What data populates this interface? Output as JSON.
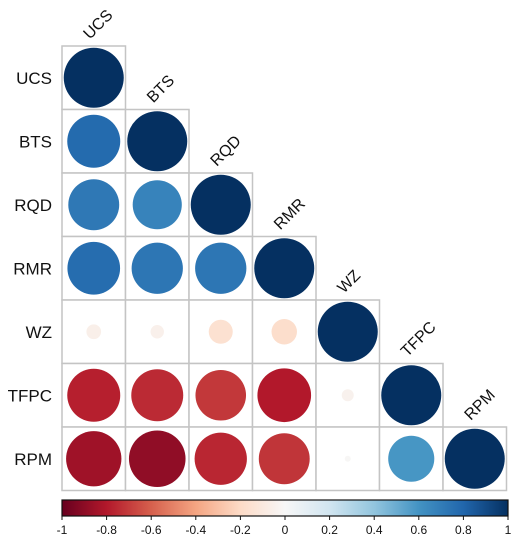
{
  "chart_data": {
    "type": "heatmap",
    "style": "lower-triangle correlation matrix with circles",
    "variables": [
      "UCS",
      "BTS",
      "RQD",
      "RMR",
      "WZ",
      "TFPC",
      "RPM"
    ],
    "matrix": [
      [
        1.0,
        null,
        null,
        null,
        null,
        null,
        null
      ],
      [
        0.78,
        1.0,
        null,
        null,
        null,
        null,
        null
      ],
      [
        0.72,
        0.67,
        1.0,
        null,
        null,
        null,
        null
      ],
      [
        0.77,
        0.73,
        0.73,
        1.0,
        null,
        null,
        null
      ],
      [
        -0.06,
        -0.05,
        -0.16,
        -0.18,
        1.0,
        null,
        null
      ],
      [
        -0.78,
        -0.75,
        -0.71,
        -0.8,
        -0.04,
        1.0,
        null
      ],
      [
        -0.85,
        -0.89,
        -0.76,
        -0.72,
        -0.01,
        0.59,
        1.0
      ]
    ],
    "colorbar": {
      "range": [
        -1,
        1
      ],
      "ticks": [
        "-1",
        "-0.8",
        "-0.6",
        "-0.4",
        "-0.2",
        "0",
        "0.2",
        "0.4",
        "0.6",
        "0.8",
        "1"
      ],
      "colors": {
        "neg_strong": "#67001f",
        "neg_mid": "#d6604d",
        "neg_light": "#fddbc7",
        "zero": "#f7f7f7",
        "pos_light": "#d1e5f0",
        "pos_mid": "#4393c3",
        "pos_strong": "#053061"
      }
    },
    "legend": "bottom"
  }
}
